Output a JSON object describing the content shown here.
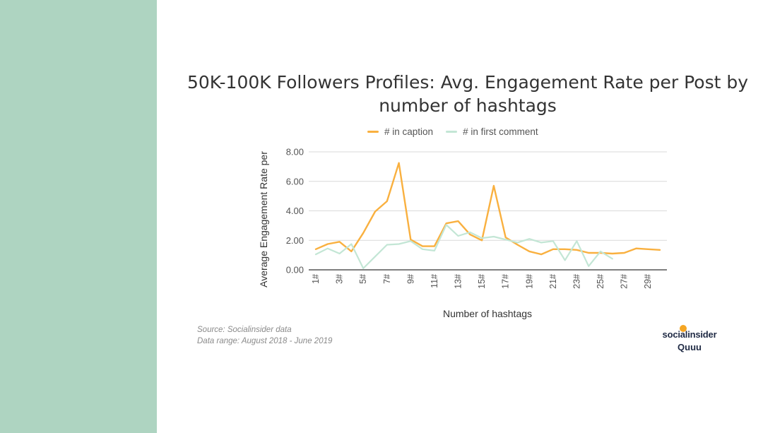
{
  "chart_data": {
    "type": "line",
    "title": "50K-100K Followers Profiles: Avg. Engagement Rate per Post by number of hashtags",
    "xlabel": "Number of hashtags",
    "ylabel": "Average Engagement Rate per",
    "ylim": [
      0,
      8
    ],
    "yticks": [
      "0.00",
      "2.00",
      "4.00",
      "6.00",
      "8.00"
    ],
    "grid": true,
    "legend_position": "top",
    "categories": [
      "1#",
      "2#",
      "3#",
      "4#",
      "5#",
      "6#",
      "7#",
      "8#",
      "9#",
      "10#",
      "11#",
      "12#",
      "13#",
      "14#",
      "15#",
      "16#",
      "17#",
      "18#",
      "19#",
      "20#",
      "21#",
      "22#",
      "23#",
      "24#",
      "25#",
      "26#",
      "27#",
      "28#",
      "29#",
      "30#"
    ],
    "xtick_labels": [
      "1#",
      "3#",
      "5#",
      "7#",
      "9#",
      "11#",
      "13#",
      "15#",
      "17#",
      "19#",
      "21#",
      "23#",
      "25#",
      "27#",
      "29#"
    ],
    "series": [
      {
        "name": "# in caption",
        "color": "#f9b03f",
        "values": [
          1.4,
          1.75,
          1.9,
          1.25,
          2.5,
          3.95,
          4.65,
          7.25,
          2.05,
          1.6,
          1.6,
          3.15,
          3.3,
          2.4,
          2.0,
          5.7,
          2.2,
          1.7,
          1.25,
          1.05,
          1.4,
          1.4,
          1.35,
          1.15,
          1.15,
          1.1,
          1.15,
          1.45,
          1.4,
          1.35
        ]
      },
      {
        "name": "# in first comment",
        "color": "#c3e6d5",
        "values": [
          1.05,
          1.45,
          1.1,
          1.75,
          0.1,
          0.9,
          1.7,
          1.75,
          1.95,
          1.4,
          1.3,
          3.05,
          2.3,
          2.55,
          2.15,
          2.25,
          2.05,
          1.85,
          2.1,
          1.85,
          1.95,
          0.65,
          1.95,
          0.25,
          1.25,
          0.75,
          null,
          null,
          null,
          null
        ]
      }
    ]
  },
  "source": {
    "line1": "Source: Socialinsider data",
    "line2": "Data range: August 2018 - June 2019"
  },
  "logo": {
    "main": "socialinsider",
    "sub": "Quuu"
  },
  "colors": {
    "side_band": "#aed4c1",
    "caption": "#f9b03f",
    "first_comment": "#c3e6d5"
  }
}
